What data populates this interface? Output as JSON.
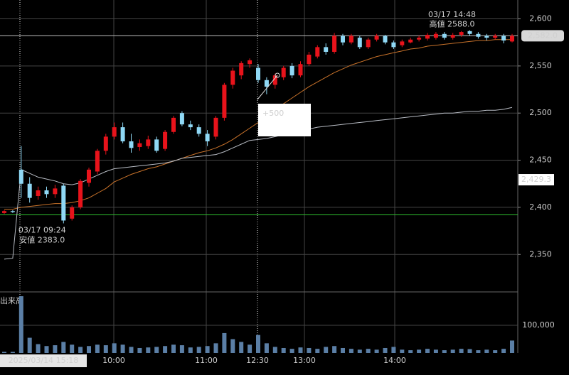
{
  "chart_data": {
    "type": "candlestick",
    "up_color": "#e8131b",
    "down_color": "#8fd8f5",
    "ylim": [
      2311,
      2620
    ],
    "yticks": [
      {
        "value": 2350,
        "label": "2,350"
      },
      {
        "value": 2400,
        "label": "2,400"
      },
      {
        "value": 2450,
        "label": "2,450"
      },
      {
        "value": 2500,
        "label": "2,500"
      },
      {
        "value": 2550,
        "label": "2,550"
      },
      {
        "value": 2600,
        "label": "2,600"
      }
    ],
    "grid": true,
    "open": [
      2394,
      2396,
      2440,
      2425,
      2412,
      2418,
      2414,
      2423,
      2388,
      2400,
      2426,
      2438,
      2460,
      2475,
      2485,
      2470,
      2464,
      2465,
      2472,
      2462,
      2480,
      2500,
      2488,
      2485,
      2478,
      2475,
      2495,
      2530,
      2540,
      2552,
      2548,
      2535,
      2530,
      2538,
      2550,
      2540,
      2552,
      2560,
      2570,
      2565,
      2582,
      2575,
      2580,
      2570,
      2578,
      2582,
      2575,
      2572,
      2575,
      2578,
      2579,
      2580,
      2584,
      2580,
      2583,
      2587,
      2584,
      2582,
      2580,
      2582,
      2576
    ],
    "high": [
      2397,
      2397,
      2465,
      2432,
      2422,
      2422,
      2424,
      2425,
      2402,
      2430,
      2442,
      2462,
      2478,
      2490,
      2490,
      2478,
      2472,
      2476,
      2475,
      2482,
      2497,
      2502,
      2492,
      2488,
      2482,
      2497,
      2532,
      2548,
      2555,
      2558,
      2552,
      2538,
      2542,
      2550,
      2553,
      2555,
      2565,
      2572,
      2574,
      2585,
      2584,
      2584,
      2582,
      2580,
      2584,
      2583,
      2577,
      2578,
      2580,
      2582,
      2585,
      2586,
      2586,
      2585,
      2587,
      2588,
      2586,
      2584,
      2584,
      2584,
      2584
    ],
    "low": [
      2393,
      2394,
      2410,
      2405,
      2408,
      2410,
      2410,
      2383,
      2386,
      2398,
      2422,
      2435,
      2456,
      2472,
      2468,
      2458,
      2460,
      2462,
      2458,
      2460,
      2478,
      2486,
      2482,
      2475,
      2465,
      2472,
      2492,
      2526,
      2536,
      2548,
      2532,
      2520,
      2526,
      2535,
      2537,
      2538,
      2550,
      2558,
      2562,
      2563,
      2572,
      2573,
      2568,
      2568,
      2576,
      2573,
      2568,
      2570,
      2574,
      2576,
      2577,
      2578,
      2578,
      2578,
      2581,
      2582,
      2579,
      2577,
      2578,
      2574,
      2575
    ],
    "close": [
      2396,
      2395,
      2425,
      2410,
      2418,
      2414,
      2420,
      2386,
      2400,
      2428,
      2440,
      2460,
      2475,
      2485,
      2470,
      2463,
      2468,
      2472,
      2460,
      2480,
      2495,
      2488,
      2485,
      2478,
      2470,
      2495,
      2530,
      2545,
      2553,
      2556,
      2535,
      2528,
      2540,
      2548,
      2540,
      2552,
      2562,
      2570,
      2565,
      2582,
      2575,
      2582,
      2570,
      2578,
      2582,
      2575,
      2570,
      2576,
      2578,
      2580,
      2583,
      2584,
      2580,
      2583,
      2586,
      2584,
      2581,
      2580,
      2582,
      2577,
      2582
    ],
    "lines": [
      {
        "color": "#c8722a",
        "values": [
          2398,
          2398,
          2400,
          2401,
          2402,
          2403,
          2404,
          2404,
          2405,
          2407,
          2410,
          2415,
          2420,
          2427,
          2431,
          2435,
          2438,
          2441,
          2443,
          2446,
          2449,
          2452,
          2455,
          2458,
          2460,
          2463,
          2467,
          2472,
          2478,
          2484,
          2490,
          2496,
          2503,
          2510,
          2516,
          2522,
          2528,
          2533,
          2538,
          2543,
          2547,
          2551,
          2554,
          2557,
          2560,
          2562,
          2564,
          2566,
          2568,
          2569,
          2571,
          2572,
          2573,
          2574,
          2575,
          2576,
          2577,
          2577,
          2578,
          2578,
          2578
        ]
      },
      {
        "color": "#b8bcc4",
        "values": [
          2345,
          2346,
          2440,
          2436,
          2432,
          2430,
          2428,
          2425,
          2424,
          2426,
          2430,
          2434,
          2438,
          2441,
          2442,
          2443,
          2444,
          2445,
          2446,
          2447,
          2449,
          2452,
          2453,
          2454,
          2455,
          2456,
          2459,
          2463,
          2467,
          2471,
          2472,
          2473,
          2475,
          2477,
          2479,
          2481,
          2483,
          2485,
          2486,
          2487,
          2488,
          2489,
          2490,
          2491,
          2492,
          2493,
          2494,
          2495,
          2496,
          2497,
          2498,
          2499,
          2500,
          2500,
          2501,
          2502,
          2502,
          2503,
          2503,
          2504,
          2506
        ]
      }
    ],
    "reference_line": {
      "value": 2392,
      "color": "#2fbf2f"
    },
    "price_tags": [
      {
        "value": 2582,
        "label": "2,582.0"
      },
      {
        "value": 2429.3,
        "label": "2,429.3"
      }
    ],
    "high_note": {
      "time": "03/17 14:48",
      "label": "高値 2588.0",
      "value": 2588
    },
    "low_note": {
      "time": "03/17 09:24",
      "label": "安値 2383.0",
      "value": 2383
    },
    "tooltip": "+500",
    "volume": {
      "label": "出来高",
      "color": "#5b7fa6",
      "values": [
        4000,
        4000,
        205000,
        55000,
        32000,
        25000,
        28000,
        40000,
        30000,
        22000,
        25000,
        30000,
        28000,
        35000,
        30000,
        22000,
        18000,
        20000,
        22000,
        25000,
        30000,
        28000,
        20000,
        22000,
        25000,
        35000,
        72000,
        50000,
        40000,
        30000,
        65000,
        35000,
        22000,
        18000,
        15000,
        20000,
        18000,
        15000,
        22000,
        25000,
        18000,
        15000,
        12000,
        15000,
        12000,
        18000,
        22000,
        12000,
        10000,
        12000,
        15000,
        12000,
        10000,
        12000,
        15000,
        14000,
        10000,
        12000,
        10000,
        15000,
        45000
      ],
      "ylim": [
        0,
        218000
      ],
      "yticks": [
        {
          "value": 100000,
          "label": "100,000"
        }
      ]
    },
    "cursor_time": "2025/03/14 15:18",
    "x_labels": [
      "10:00",
      "11:00",
      "12:30",
      "13:00",
      "14:00"
    ]
  }
}
